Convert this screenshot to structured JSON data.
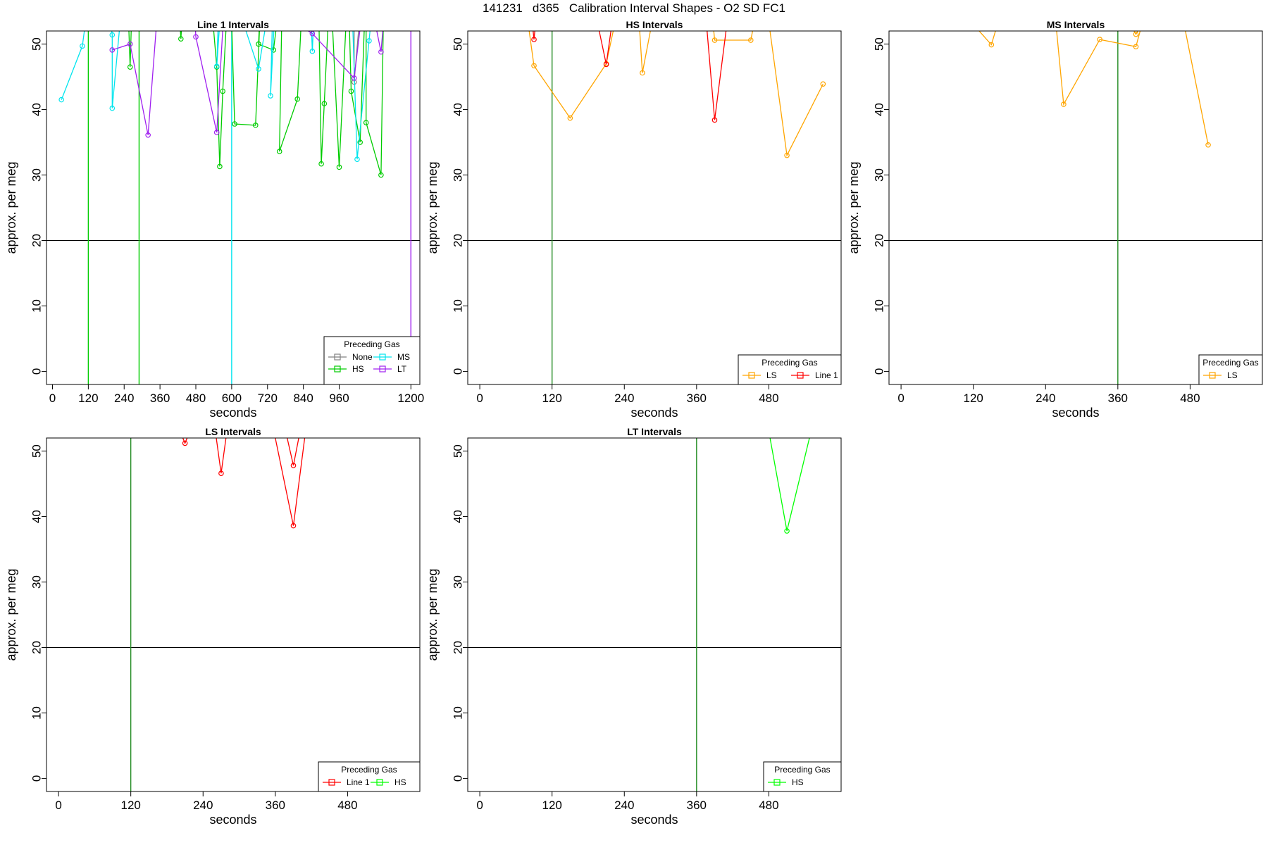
{
  "page_title": "141231   d365   Calibration Interval Shapes - O2 SD FC1",
  "chart_data": [
    {
      "type": "line",
      "title": "Line 1 Intervals",
      "xlabel": "seconds",
      "ylabel": "approx. per meg",
      "xlim": [
        -20,
        1230
      ],
      "ylim": [
        -2,
        52
      ],
      "xticks": [
        0,
        120,
        240,
        360,
        480,
        600,
        720,
        840,
        960,
        1200
      ],
      "yticks": [
        0,
        10,
        20,
        30,
        40,
        50
      ],
      "hline": 20,
      "vlines": [
        {
          "x": 120,
          "color": "#00cc00"
        },
        {
          "x": 290,
          "color": "#00cc00"
        },
        {
          "x": 600,
          "color": "#00e5ee"
        },
        {
          "x": 1200,
          "color": "#a020f0"
        }
      ],
      "legend": {
        "title": "Preceding Gas",
        "position": "bottom-right",
        "columns": 2,
        "entries": [
          "None",
          "MS",
          "HS",
          "LT"
        ]
      },
      "series": [
        {
          "name": "None",
          "color": "#808080",
          "points": [
            [
              1010,
              63
            ],
            [
              1010,
              44.2
            ],
            [
              1040,
              60
            ]
          ]
        },
        {
          "name": "HS",
          "color": "#00cc00",
          "points": [
            [
              270,
              62
            ],
            [
              260,
              46.5
            ],
            [
              250,
              60
            ],
            [
              420,
              58
            ],
            [
              430,
              50.8
            ],
            [
              440,
              58
            ],
            [
              520,
              60
            ],
            [
              540,
              52
            ],
            [
              550,
              46.5
            ],
            [
              560,
              31.3
            ],
            [
              570,
              42.8
            ],
            [
              590,
              60
            ],
            [
              600,
              53
            ],
            [
              610,
              37.8
            ],
            [
              680,
              37.6
            ],
            [
              700,
              60
            ],
            [
              690,
              50
            ],
            [
              740,
              49.1
            ],
            [
              770,
              60
            ],
            [
              760,
              33.6
            ],
            [
              820,
              41.6
            ],
            [
              840,
              60
            ],
            [
              890,
              60
            ],
            [
              900,
              31.7
            ],
            [
              910,
              40.9
            ],
            [
              930,
              60
            ],
            [
              960,
              31.2
            ],
            [
              990,
              60
            ],
            [
              1000,
              42.8
            ],
            [
              1030,
              35
            ],
            [
              1050,
              60
            ],
            [
              1050,
              38
            ],
            [
              1100,
              30
            ],
            [
              1110,
              60
            ]
          ]
        },
        {
          "name": "MS",
          "color": "#00e5ee",
          "points": [
            [
              30,
              41.5
            ],
            [
              100,
              49.7
            ],
            [
              130,
              60
            ],
            [
              180,
              60
            ],
            [
              200,
              51.4
            ],
            [
              200,
              40.2
            ],
            [
              240,
              60
            ],
            [
              560,
              60
            ],
            [
              550,
              46.6
            ],
            [
              570,
              60
            ],
            [
              590,
              60
            ],
            [
              690,
              46.2
            ],
            [
              740,
              60
            ],
            [
              730,
              42.1
            ],
            [
              750,
              60
            ],
            [
              860,
              60
            ],
            [
              870,
              48.9
            ],
            [
              880,
              60
            ],
            [
              1000,
              60
            ],
            [
              1020,
              32.4
            ],
            [
              1060,
              50.5
            ],
            [
              1080,
              60
            ]
          ]
        },
        {
          "name": "LT",
          "color": "#a020f0",
          "points": [
            [
              200,
              49.1
            ],
            [
              260,
              50
            ],
            [
              320,
              36.1
            ],
            [
              360,
              60
            ],
            [
              470,
              60
            ],
            [
              480,
              51.1
            ],
            [
              550,
              36.5
            ],
            [
              580,
              60
            ],
            [
              870,
              51.6
            ],
            [
              1010,
              44.8
            ],
            [
              1050,
              60
            ],
            [
              1100,
              48.8
            ],
            [
              1120,
              60
            ]
          ]
        }
      ]
    },
    {
      "type": "line",
      "title": "HS Intervals",
      "xlabel": "seconds",
      "ylabel": "approx. per meg",
      "xlim": [
        -20,
        600
      ],
      "ylim": [
        -2,
        52
      ],
      "xticks": [
        0,
        120,
        240,
        360,
        480
      ],
      "yticks": [
        0,
        10,
        20,
        30,
        40,
        50
      ],
      "hline": 20,
      "vlines": [
        {
          "x": 120,
          "color": "#228b22"
        }
      ],
      "legend": {
        "title": "Preceding Gas",
        "position": "bottom-right",
        "columns": 2,
        "entries": [
          "LS",
          "Line 1"
        ]
      },
      "series": [
        {
          "name": "LS",
          "color": "#ffa500",
          "points": [
            [
              70,
              60
            ],
            [
              90,
              46.7
            ],
            [
              150,
              38.7
            ],
            [
              210,
              47
            ],
            [
              240,
              60
            ],
            [
              260,
              60
            ],
            [
              270,
              45.6
            ],
            [
              300,
              60
            ],
            [
              380,
              60
            ],
            [
              390,
              50.6
            ],
            [
              450,
              50.6
            ],
            [
              470,
              60
            ],
            [
              510,
              33
            ],
            [
              570,
              43.9
            ]
          ]
        },
        {
          "name": "Line 1",
          "color": "#ff0000",
          "points": [
            [
              80,
              60
            ],
            [
              90,
              50.7
            ],
            [
              100,
              60
            ],
            [
              180,
              60
            ],
            [
              210,
              46.9
            ],
            [
              230,
              60
            ],
            [
              370,
              60
            ],
            [
              390,
              38.4
            ],
            [
              420,
              60
            ]
          ]
        }
      ]
    },
    {
      "type": "line",
      "title": "MS Intervals",
      "xlabel": "seconds",
      "ylabel": "approx. per meg",
      "xlim": [
        -20,
        600
      ],
      "ylim": [
        -2,
        52
      ],
      "xticks": [
        0,
        120,
        240,
        360,
        480
      ],
      "yticks": [
        0,
        10,
        20,
        30,
        40,
        50
      ],
      "hline": 20,
      "vlines": [
        {
          "x": 360,
          "color": "#228b22"
        }
      ],
      "legend": {
        "title": "Preceding Gas",
        "position": "bottom-right",
        "columns": 1,
        "entries": [
          "LS"
        ]
      },
      "series": [
        {
          "name": "LS",
          "color": "#ffa500",
          "points": [
            [
              120,
              53
            ],
            [
              150,
              49.9
            ],
            [
              160,
              53
            ],
            [
              250,
              60
            ],
            [
              270,
              40.8
            ],
            [
              330,
              50.7
            ],
            [
              390,
              49.6
            ],
            [
              400,
              53
            ],
            [
              380,
              53
            ],
            [
              390,
              51.5
            ],
            [
              400,
              53
            ],
            [
              470,
              53
            ],
            [
              510,
              34.6
            ]
          ]
        }
      ]
    },
    {
      "type": "line",
      "title": "LS Intervals",
      "xlabel": "seconds",
      "ylabel": "approx. per meg",
      "xlim": [
        -20,
        600
      ],
      "ylim": [
        -2,
        52
      ],
      "xticks": [
        0,
        120,
        240,
        360,
        480
      ],
      "yticks": [
        0,
        10,
        20,
        30,
        40,
        50
      ],
      "hline": 20,
      "vlines": [
        {
          "x": 120,
          "color": "#228b22"
        }
      ],
      "legend": {
        "title": "Preceding Gas",
        "position": "bottom-right",
        "columns": 2,
        "entries": [
          "Line 1",
          "HS"
        ]
      },
      "series": [
        {
          "name": "Line 1",
          "color": "#ff0000",
          "points": [
            [
              170,
              60
            ],
            [
              210,
              51.2
            ],
            [
              250,
              60
            ],
            [
              270,
              46.6
            ],
            [
              290,
              60
            ],
            [
              360,
              60
            ],
            [
              390,
              47.8
            ],
            [
              400,
              52.5
            ],
            [
              360,
              52
            ],
            [
              390,
              38.6
            ],
            [
              420,
              60
            ]
          ]
        },
        {
          "name": "HS",
          "color": "#00ff00",
          "points": []
        }
      ]
    },
    {
      "type": "line",
      "title": "LT Intervals",
      "xlabel": "seconds",
      "ylabel": "approx. per meg",
      "xlim": [
        -20,
        600
      ],
      "ylim": [
        -2,
        52
      ],
      "xticks": [
        0,
        120,
        240,
        360,
        480
      ],
      "yticks": [
        0,
        10,
        20,
        30,
        40,
        50
      ],
      "hline": 20,
      "vlines": [
        {
          "x": 360,
          "color": "#228b22"
        }
      ],
      "legend": {
        "title": "Preceding Gas",
        "position": "bottom-right",
        "columns": 1,
        "entries": [
          "HS"
        ]
      },
      "series": [
        {
          "name": "HS",
          "color": "#00ff00",
          "points": [
            [
              480,
              53
            ],
            [
              510,
              37.8
            ],
            [
              550,
              53
            ]
          ]
        }
      ]
    }
  ]
}
